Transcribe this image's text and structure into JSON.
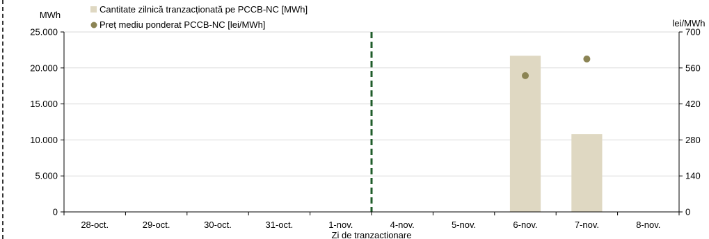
{
  "chart_data": {
    "type": "bar",
    "categories": [
      "28-oct.",
      "29-oct.",
      "30-oct.",
      "31-oct.",
      "1-nov.",
      "4-nov.",
      "5-nov.",
      "6-nov.",
      "7-nov.",
      "8-nov."
    ],
    "series": [
      {
        "name": "Cantitate zilnică tranzacționată pe PCCB-NC [MWh]",
        "type": "bar",
        "axis": "left",
        "color": "#dfd8c2",
        "values": [
          0,
          0,
          0,
          0,
          0,
          0,
          0,
          21700,
          10800,
          0
        ]
      },
      {
        "name": "Preț mediu ponderat PCCB-NC [lei/MWh]",
        "type": "scatter",
        "axis": "right",
        "color": "#8b8454",
        "values": [
          null,
          null,
          null,
          null,
          null,
          null,
          null,
          530,
          595,
          null
        ]
      }
    ],
    "xlabel": "Zi de tranzactionare",
    "ylabel_left": "MWh",
    "ylabel_right": "lei/MWh",
    "ylim_left": [
      0,
      25000
    ],
    "yticks_left": [
      "0",
      "5.000",
      "10.000",
      "15.000",
      "20.000",
      "25.000"
    ],
    "ylim_right": [
      0,
      700
    ],
    "yticks_right": [
      "0",
      "140",
      "280",
      "420",
      "560",
      "700"
    ],
    "separator_after_category": "1-nov.",
    "separator_color": "#1f5c2a",
    "grid": true,
    "gridline_color": "#d9d9d9",
    "legend_position": "top-left"
  }
}
